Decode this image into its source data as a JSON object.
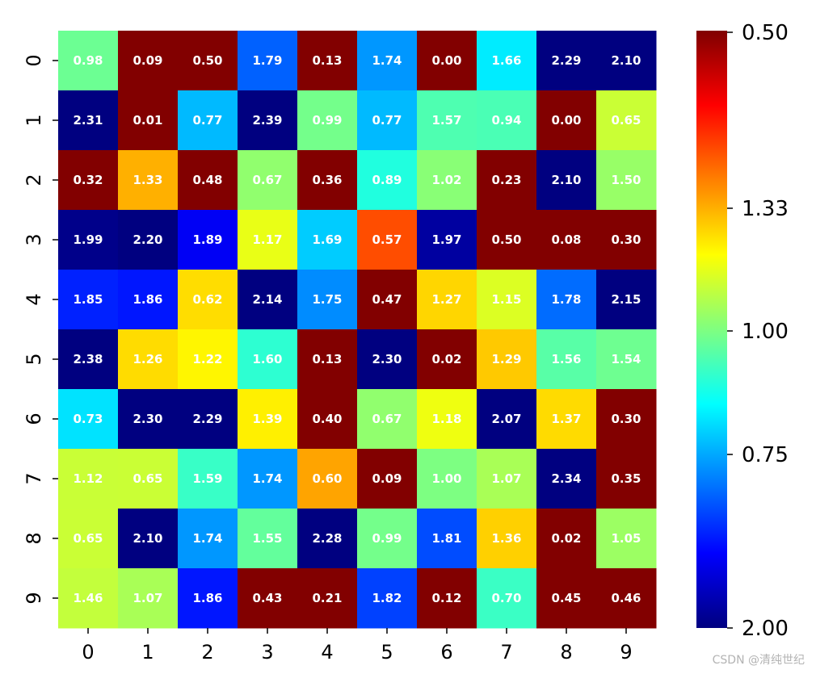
{
  "chart_data": {
    "type": "heatmap",
    "colormap": "jet",
    "x_tick_labels": [
      "0",
      "1",
      "2",
      "3",
      "4",
      "5",
      "6",
      "7",
      "8",
      "9"
    ],
    "y_tick_labels": [
      "0",
      "1",
      "2",
      "3",
      "4",
      "5",
      "6",
      "7",
      "8",
      "9"
    ],
    "values": [
      [
        0.98,
        0.09,
        0.5,
        1.79,
        0.13,
        1.74,
        0.0,
        1.66,
        2.29,
        2.1
      ],
      [
        2.31,
        0.01,
        0.77,
        2.39,
        0.99,
        0.77,
        1.57,
        0.94,
        0.0,
        0.65
      ],
      [
        0.32,
        1.33,
        0.48,
        0.67,
        0.36,
        0.89,
        1.02,
        0.23,
        2.1,
        1.5
      ],
      [
        1.99,
        2.2,
        1.89,
        1.17,
        1.69,
        0.57,
        1.97,
        0.5,
        0.08,
        0.3
      ],
      [
        1.85,
        1.86,
        0.62,
        2.14,
        1.75,
        0.47,
        1.27,
        1.15,
        1.78,
        2.15
      ],
      [
        2.38,
        1.26,
        1.22,
        1.6,
        0.13,
        2.3,
        0.02,
        1.29,
        1.56,
        1.54
      ],
      [
        0.73,
        2.3,
        2.29,
        1.39,
        0.4,
        0.67,
        1.18,
        2.07,
        1.37,
        0.3
      ],
      [
        1.12,
        0.65,
        1.59,
        1.74,
        0.6,
        0.09,
        1.0,
        1.07,
        2.34,
        0.35
      ],
      [
        0.65,
        2.1,
        1.74,
        1.55,
        2.28,
        0.99,
        1.81,
        1.36,
        0.02,
        1.05
      ],
      [
        1.46,
        1.07,
        1.86,
        0.43,
        0.21,
        1.82,
        0.12,
        0.7,
        0.45,
        0.46
      ]
    ],
    "colorbar": {
      "vmin": 0.5,
      "vmax": 2.0,
      "ticks": [
        2.0,
        1.33,
        1.0,
        0.75,
        0.5
      ],
      "tick_labels": [
        "2.00",
        "1.33",
        "1.00",
        "0.75",
        "0.50"
      ]
    },
    "annotation_format": "0.00"
  },
  "watermark": "CSDN @清纯世纪"
}
